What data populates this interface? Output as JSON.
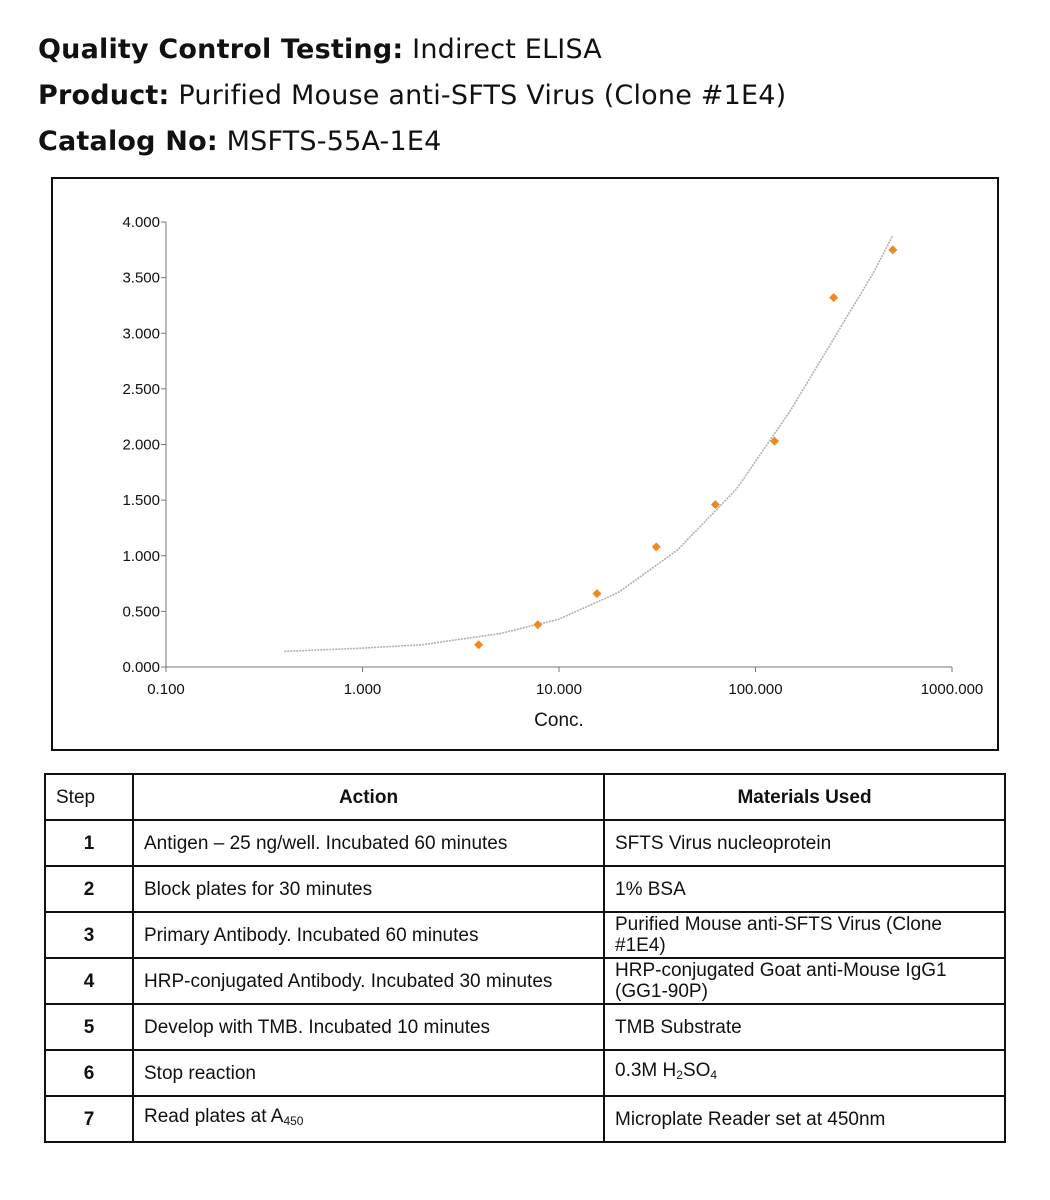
{
  "header": {
    "qc_label": "Quality Control Testing:",
    "qc_value": "Indirect ELISA",
    "product_label": "Product:",
    "product_value": "Purified Mouse anti-SFTS Virus (Clone #1E4)",
    "catalog_label": "Catalog No:",
    "catalog_value": "MSFTS-55A-1E4"
  },
  "chart_data": {
    "type": "scatter",
    "xlabel": "Conc.",
    "ylabel": "",
    "x_scale": "log",
    "xlim": [
      0.1,
      1000
    ],
    "ylim": [
      0,
      4
    ],
    "x_ticks": [
      0.1,
      1,
      10,
      100,
      1000
    ],
    "x_tick_labels": [
      "0.100",
      "1.000",
      "10.000",
      "100.000",
      "1000.000"
    ],
    "y_ticks": [
      0,
      0.5,
      1,
      1.5,
      2,
      2.5,
      3,
      3.5,
      4
    ],
    "y_tick_labels": [
      "0.000",
      "0.500",
      "1.000",
      "1.500",
      "2.000",
      "2.500",
      "3.000",
      "3.500",
      "4.000"
    ],
    "grid": false,
    "point_color": "#ee8a22",
    "curve_color": "#b0b0b0",
    "points": [
      {
        "x": 3.9,
        "y": 0.2
      },
      {
        "x": 7.8,
        "y": 0.38
      },
      {
        "x": 15.6,
        "y": 0.66
      },
      {
        "x": 31.25,
        "y": 1.08
      },
      {
        "x": 62.5,
        "y": 1.46
      },
      {
        "x": 125,
        "y": 2.03
      },
      {
        "x": 250,
        "y": 3.32
      },
      {
        "x": 500,
        "y": 3.75
      }
    ],
    "fit_curve": [
      {
        "x": 0.4,
        "y": 0.14
      },
      {
        "x": 1,
        "y": 0.17
      },
      {
        "x": 2,
        "y": 0.2
      },
      {
        "x": 5,
        "y": 0.3
      },
      {
        "x": 10,
        "y": 0.43
      },
      {
        "x": 20,
        "y": 0.67
      },
      {
        "x": 40,
        "y": 1.05
      },
      {
        "x": 80,
        "y": 1.6
      },
      {
        "x": 150,
        "y": 2.3
      },
      {
        "x": 250,
        "y": 2.95
      },
      {
        "x": 400,
        "y": 3.55
      },
      {
        "x": 500,
        "y": 3.88
      }
    ]
  },
  "table": {
    "headers": [
      "Step",
      "Action",
      "Materials Used"
    ],
    "rows": [
      {
        "step": "1",
        "action": "Antigen – 25 ng/well. Incubated 60 minutes",
        "material": "SFTS Virus nucleoprotein"
      },
      {
        "step": "2",
        "action": "Block plates for 30 minutes",
        "material": "1% BSA"
      },
      {
        "step": "3",
        "action": "Primary Antibody. Incubated 60 minutes",
        "material": "Purified Mouse anti-SFTS Virus (Clone #1E4)"
      },
      {
        "step": "4",
        "action": "HRP-conjugated Antibody. Incubated 30 minutes",
        "material": "HRP-conjugated Goat anti-Mouse IgG1 (GG1-90P)"
      },
      {
        "step": "5",
        "action": "Develop with TMB. Incubated 10 minutes",
        "material": "TMB Substrate"
      },
      {
        "step": "6",
        "action": "Stop reaction",
        "material": "0.3M H",
        "material_sub": "2",
        "material_tail": "SO",
        "material_sub2": "4"
      },
      {
        "step": "7",
        "action": "Read plates at A",
        "action_sub": "450",
        "material": "Microplate Reader set at 450nm"
      }
    ]
  }
}
